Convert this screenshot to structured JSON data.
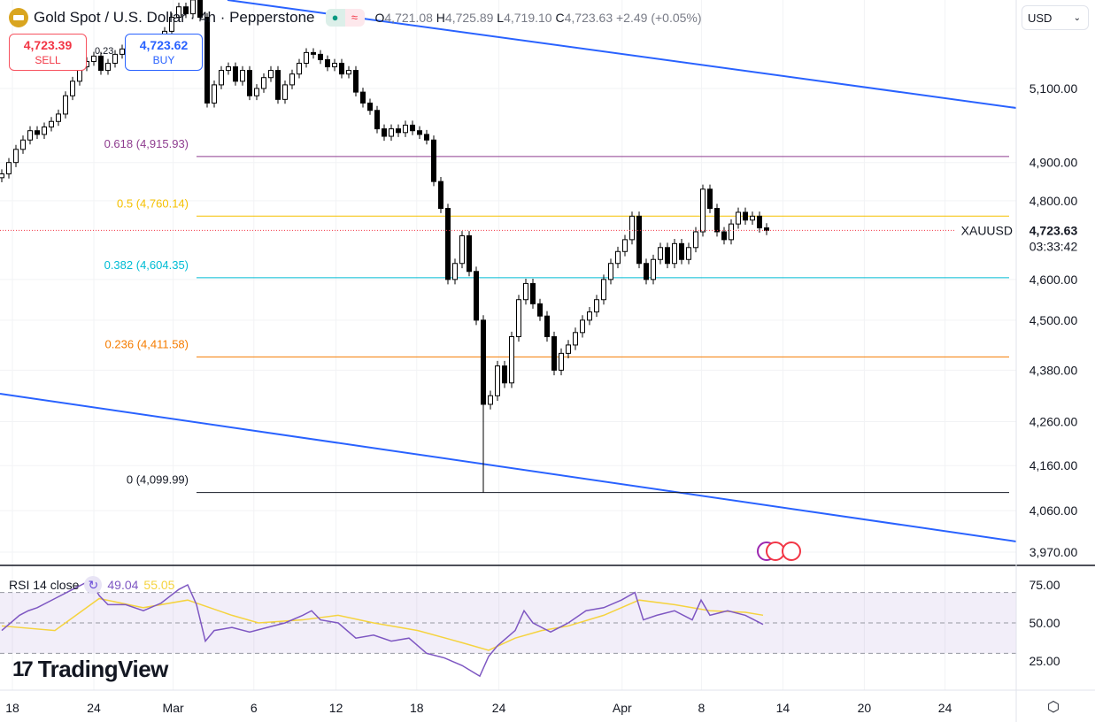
{
  "header": {
    "symbol_title": "Gold Spot / U.S. Dollar · 4h · Pepperstone",
    "ohlc": {
      "o_label": "O",
      "o": "4,721.08",
      "h_label": "H",
      "h": "4,725.89",
      "l_label": "L",
      "l": "4,719.10",
      "c_label": "C",
      "c": "4,723.63",
      "change": "+2.49 (+0.05%)"
    },
    "market_status_icon": "green-dot-icon",
    "data_icon": "wave-icon"
  },
  "trade": {
    "sell_price": "4,723.39",
    "sell_label": "SELL",
    "buy_price": "4,723.62",
    "buy_label": "BUY",
    "spread": "0.23"
  },
  "currency": {
    "selected": "USD"
  },
  "colors": {
    "up": "#ffffff",
    "down": "#000000",
    "channel": "#2962ff",
    "price_line": "#f23645",
    "rsi": "#7e57c2",
    "rsi_ma": "#f5d33f"
  },
  "price_label": {
    "symbol": "XAUUSD",
    "price": "4,723.63",
    "countdown": "03:33:42"
  },
  "rsi_legend": {
    "label": "RSI 14 close",
    "value": "49.04",
    "ma_value": "55.05"
  },
  "watermark": "TradingView",
  "chart_data": {
    "type": "candlestick",
    "title": "Gold Spot / U.S. Dollar · 4h · Pepperstone",
    "scale": "log",
    "ylim": [
      3940,
      5360
    ],
    "price_ticks": [
      {
        "v": 5100,
        "label": "5,100.00"
      },
      {
        "v": 4900,
        "label": "4,900.00"
      },
      {
        "v": 4800,
        "label": "4,800.00"
      },
      {
        "v": 4600,
        "label": "4,600.00"
      },
      {
        "v": 4500,
        "label": "4,500.00"
      },
      {
        "v": 4380,
        "label": "4,380.00"
      },
      {
        "v": 4260,
        "label": "4,260.00"
      },
      {
        "v": 4160,
        "label": "4,160.00"
      },
      {
        "v": 4060,
        "label": "4,060.00"
      },
      {
        "v": 3970,
        "label": "3,970.00"
      }
    ],
    "time_ticks": [
      {
        "bar": 1.5,
        "label": "18"
      },
      {
        "bar": 13,
        "label": "24"
      },
      {
        "bar": 24.2,
        "label": "Mar"
      },
      {
        "bar": 35.6,
        "label": "6"
      },
      {
        "bar": 47.2,
        "label": "12"
      },
      {
        "bar": 58.6,
        "label": "18"
      },
      {
        "bar": 70.2,
        "label": "24"
      },
      {
        "bar": 87.6,
        "label": "Apr"
      },
      {
        "bar": 98.8,
        "label": "8"
      },
      {
        "bar": 110.3,
        "label": "14"
      },
      {
        "bar": 121.8,
        "label": "20"
      },
      {
        "bar": 133.2,
        "label": "24"
      }
    ],
    "closes": [
      4870,
      4900,
      4935,
      4960,
      4985,
      4975,
      4995,
      5010,
      5030,
      5080,
      5120,
      5160,
      5175,
      5190,
      5150,
      5170,
      5195,
      5210,
      5180,
      5200,
      5165,
      5180,
      5220,
      5260,
      5300,
      5330,
      5310,
      5350,
      5300,
      5060,
      5110,
      5150,
      5160,
      5120,
      5150,
      5080,
      5100,
      5130,
      5150,
      5070,
      5110,
      5140,
      5170,
      5200,
      5195,
      5180,
      5160,
      5170,
      5140,
      5150,
      5090,
      5060,
      5040,
      4990,
      4970,
      4990,
      4980,
      5000,
      4985,
      4975,
      4960,
      4850,
      4780,
      4600,
      4640,
      4710,
      4620,
      4500,
      4300,
      4320,
      4390,
      4350,
      4460,
      4550,
      4590,
      4540,
      4510,
      4460,
      4380,
      4420,
      4440,
      4470,
      4500,
      4520,
      4550,
      4600,
      4640,
      4670,
      4700,
      4760,
      4640,
      4600,
      4650,
      4680,
      4640,
      4690,
      4650,
      4680,
      4720,
      4830,
      4780,
      4720,
      4700,
      4740,
      4770,
      4750,
      4760,
      4730,
      4723.63
    ],
    "swing_low": {
      "bar": 68,
      "price": 4099.99
    },
    "fib_levels": [
      {
        "ratio": "0.618",
        "price": 4915.93,
        "label": "0.618 (4,915.93)",
        "color": "#8e3c8f"
      },
      {
        "ratio": "0.5",
        "price": 4760.14,
        "label": "0.5 (4,760.14)",
        "color": "#f5c000"
      },
      {
        "ratio": "0.382",
        "price": 4604.35,
        "label": "0.382 (4,604.35)",
        "color": "#00bcd4"
      },
      {
        "ratio": "0.236",
        "price": 4411.58,
        "label": "0.236 (4,411.58)",
        "color": "#f57c00"
      },
      {
        "ratio": "0",
        "price": 4099.99,
        "label": "0 (4,099.99)",
        "color": "#131722"
      }
    ],
    "current_price": 4723.63,
    "rsi": {
      "ticks": [
        {
          "v": 75,
          "label": "75.00"
        },
        {
          "v": 50,
          "label": "50.00"
        },
        {
          "v": 25,
          "label": "25.00"
        }
      ],
      "band": [
        30,
        70
      ],
      "values": [
        [
          0,
          45
        ],
        [
          2.5,
          55
        ],
        [
          3.75,
          58
        ],
        [
          5,
          60
        ],
        [
          7.5,
          66
        ],
        [
          10,
          72
        ],
        [
          12.5,
          78
        ],
        [
          13.75,
          68
        ],
        [
          15,
          62
        ],
        [
          17.5,
          62
        ],
        [
          20,
          58
        ],
        [
          22.5,
          63
        ],
        [
          25,
          72
        ],
        [
          26.25,
          75
        ],
        [
          27.5,
          62
        ],
        [
          28.75,
          38
        ],
        [
          30,
          45
        ],
        [
          32.5,
          47
        ],
        [
          35,
          44
        ],
        [
          37.5,
          47
        ],
        [
          40,
          50
        ],
        [
          42.5,
          55
        ],
        [
          43.75,
          58
        ],
        [
          45,
          52
        ],
        [
          47.5,
          50
        ],
        [
          50,
          40
        ],
        [
          52.5,
          42
        ],
        [
          55,
          38
        ],
        [
          57.5,
          40
        ],
        [
          60,
          30
        ],
        [
          62.5,
          27
        ],
        [
          65,
          22
        ],
        [
          67.5,
          15
        ],
        [
          68.75,
          28
        ],
        [
          70,
          35
        ],
        [
          72.5,
          45
        ],
        [
          73.75,
          58
        ],
        [
          75,
          50
        ],
        [
          77.5,
          44
        ],
        [
          80,
          50
        ],
        [
          82.5,
          58
        ],
        [
          85,
          60
        ],
        [
          87.5,
          65
        ],
        [
          89.4,
          70
        ],
        [
          90.6,
          52
        ],
        [
          92.5,
          55
        ],
        [
          95,
          58
        ],
        [
          97.5,
          52
        ],
        [
          98.75,
          65
        ],
        [
          100,
          55
        ],
        [
          102.5,
          58
        ],
        [
          105,
          55
        ],
        [
          107.5,
          49.04
        ]
      ],
      "ma": [
        [
          0,
          48
        ],
        [
          7.5,
          45
        ],
        [
          13.75,
          66
        ],
        [
          20,
          60
        ],
        [
          26.25,
          65
        ],
        [
          32.5,
          55
        ],
        [
          36.25,
          50
        ],
        [
          42.5,
          52
        ],
        [
          47.5,
          55
        ],
        [
          52.5,
          50
        ],
        [
          58.75,
          45
        ],
        [
          65,
          37
        ],
        [
          68.75,
          32
        ],
        [
          72.5,
          40
        ],
        [
          76.25,
          45
        ],
        [
          80,
          48
        ],
        [
          85,
          55
        ],
        [
          90,
          65
        ],
        [
          95,
          62
        ],
        [
          100,
          58
        ],
        [
          105,
          57
        ],
        [
          107.5,
          55.05
        ]
      ]
    }
  }
}
